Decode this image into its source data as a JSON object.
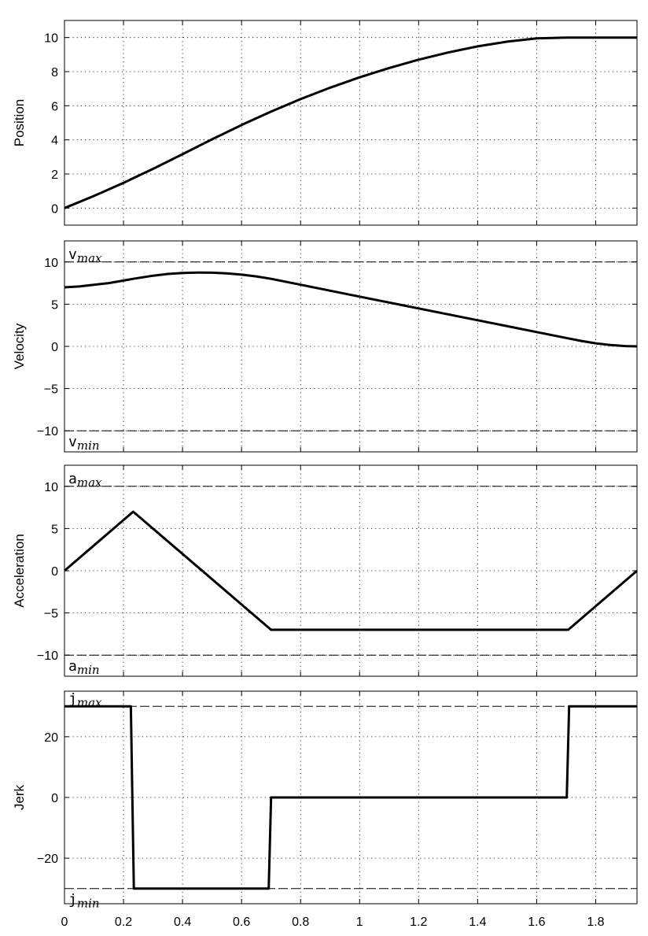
{
  "chart_data": [
    {
      "type": "line",
      "ylabel": "Position",
      "xlim": [
        0,
        1.94
      ],
      "ylim": [
        -1,
        11
      ],
      "yticks": [
        0,
        2,
        4,
        6,
        8,
        10
      ],
      "grid": true,
      "series": [
        {
          "x": [
            0,
            0.1,
            0.2,
            0.233,
            0.3,
            0.4,
            0.5,
            0.6,
            0.7,
            0.8,
            0.9,
            1.0,
            1.1,
            1.2,
            1.3,
            1.4,
            1.5,
            1.6,
            1.7,
            1.8,
            1.9,
            1.94
          ],
          "y": [
            0,
            0.71,
            1.48,
            1.75,
            2.3,
            3.16,
            4.03,
            4.87,
            5.66,
            6.39,
            7.06,
            7.67,
            8.21,
            8.7,
            9.12,
            9.48,
            9.76,
            9.95,
            10.0,
            10.0,
            10.0,
            10.0
          ]
        }
      ]
    },
    {
      "type": "line",
      "ylabel": "Velocity",
      "xlim": [
        0,
        1.94
      ],
      "ylim": [
        -12.5,
        12.5
      ],
      "yticks": [
        -10,
        -5,
        0,
        5,
        10
      ],
      "grid": true,
      "limits": [
        {
          "value": 10,
          "label": "v",
          "sub": "max",
          "side": "top"
        },
        {
          "value": -10,
          "label": "v",
          "sub": "min",
          "side": "bottom"
        }
      ],
      "series": [
        {
          "x": [
            0,
            0.05,
            0.1,
            0.15,
            0.2,
            0.233,
            0.3,
            0.35,
            0.4,
            0.45,
            0.5,
            0.55,
            0.6,
            0.65,
            0.7,
            0.8,
            1.0,
            1.2,
            1.4,
            1.6,
            1.7,
            1.75,
            1.8,
            1.85,
            1.9,
            1.94
          ],
          "y": [
            7.0,
            7.1,
            7.3,
            7.5,
            7.8,
            8.0,
            8.38,
            8.58,
            8.7,
            8.75,
            8.73,
            8.65,
            8.5,
            8.29,
            8.0,
            7.3,
            5.9,
            4.5,
            3.1,
            1.7,
            1.0,
            0.65,
            0.36,
            0.16,
            0.04,
            0
          ]
        }
      ]
    },
    {
      "type": "line",
      "ylabel": "Acceleration",
      "xlim": [
        0,
        1.94
      ],
      "ylim": [
        -12.5,
        12.5
      ],
      "yticks": [
        -10,
        -5,
        0,
        5,
        10
      ],
      "grid": true,
      "limits": [
        {
          "value": 10,
          "label": "a",
          "sub": "max",
          "side": "top"
        },
        {
          "value": -10,
          "label": "a",
          "sub": "min",
          "side": "bottom"
        }
      ],
      "series": [
        {
          "x": [
            0,
            0.233,
            0.7,
            1.707,
            1.94
          ],
          "y": [
            0,
            7,
            -7,
            -7,
            0
          ]
        }
      ]
    },
    {
      "type": "line",
      "ylabel": "Jerk",
      "xlim": [
        0,
        1.94
      ],
      "ylim": [
        -35,
        35
      ],
      "yticks": [
        -20,
        0,
        20
      ],
      "grid": true,
      "limits": [
        {
          "value": 30,
          "label": "j",
          "sub": "max",
          "side": "top"
        },
        {
          "value": -30,
          "label": "j",
          "sub": "min",
          "side": "bottom"
        }
      ],
      "series": [
        {
          "x": [
            0,
            0.225,
            0.235,
            0.692,
            0.7,
            1.702,
            1.71,
            1.94
          ],
          "y": [
            30,
            30,
            -30,
            -30,
            0,
            0,
            30,
            30
          ]
        }
      ]
    }
  ],
  "xticks": [
    "0",
    "0.2",
    "0.4",
    "0.6",
    "0.8",
    "1",
    "1.2",
    "1.4",
    "1.6",
    "1.8"
  ],
  "xtick_values": [
    0,
    0.2,
    0.4,
    0.6,
    0.8,
    1.0,
    1.2,
    1.4,
    1.6,
    1.8
  ],
  "colors": {
    "line": "#000000",
    "grid": "#000000",
    "axes": "#000000"
  }
}
